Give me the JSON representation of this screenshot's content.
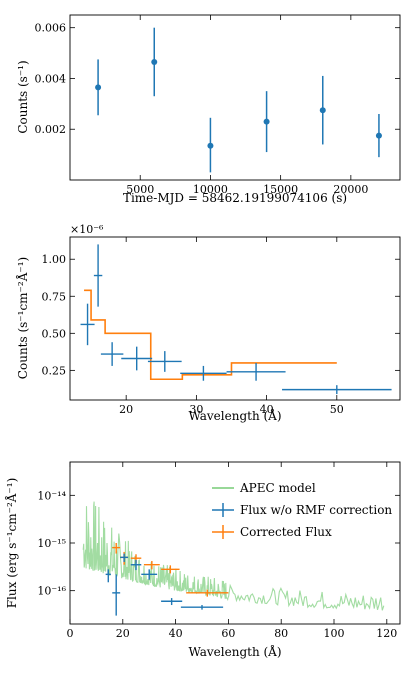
{
  "colors": {
    "blue": "#1f77b4",
    "orange": "#ff7f0e",
    "green": "#98d898"
  },
  "chart_data": [
    {
      "type": "scatter",
      "xlabel": "Time-MJD = 58462.19199074106 (s)",
      "ylabel": "Counts (s⁻¹)",
      "xlim": [
        0,
        23500
      ],
      "ylim": [
        0,
        0.0065
      ],
      "xticks": [
        5000,
        10000,
        15000,
        20000
      ],
      "xtick_labels": [
        "5000",
        "10000",
        "15000",
        "20000"
      ],
      "yticks": [
        0.002,
        0.004,
        0.006
      ],
      "ytick_labels": [
        "0.002",
        "0.004",
        "0.006"
      ],
      "series": [
        {
          "points": [
            {
              "x": 2000,
              "y": 0.00365,
              "lo": 0.00255,
              "hi": 0.00475
            },
            {
              "x": 6000,
              "y": 0.00465,
              "lo": 0.0033,
              "hi": 0.006
            },
            {
              "x": 10000,
              "y": 0.00135,
              "lo": 0.0003,
              "hi": 0.00245
            },
            {
              "x": 14000,
              "y": 0.0023,
              "lo": 0.0011,
              "hi": 0.0035
            },
            {
              "x": 18000,
              "y": 0.00275,
              "lo": 0.0014,
              "hi": 0.0041
            },
            {
              "x": 22000,
              "y": 0.00175,
              "lo": 0.0009,
              "hi": 0.0026
            }
          ]
        }
      ]
    },
    {
      "type": "line",
      "xlabel": "Wavelength (Å)",
      "ylabel": "Counts (s⁻¹cm⁻²Å⁻¹)",
      "exponent_label": "×10⁻⁶",
      "xlim": [
        12,
        59
      ],
      "ylim": [
        0.05,
        1.15
      ],
      "xticks": [
        20,
        30,
        40,
        50
      ],
      "xtick_labels": [
        "20",
        "30",
        "40",
        "50"
      ],
      "yticks": [
        0.25,
        0.5,
        0.75,
        1.0
      ],
      "ytick_labels": [
        "0.25",
        "0.50",
        "0.75",
        "1.00"
      ],
      "step_line": [
        [
          14,
          0.79
        ],
        [
          15,
          0.79
        ],
        [
          15,
          0.59
        ],
        [
          17,
          0.59
        ],
        [
          17,
          0.5
        ],
        [
          23.5,
          0.5
        ],
        [
          23.5,
          0.19
        ],
        [
          28,
          0.19
        ],
        [
          28,
          0.22
        ],
        [
          35,
          0.22
        ],
        [
          35,
          0.3
        ],
        [
          50,
          0.3
        ]
      ],
      "error_points": [
        {
          "x": 14.5,
          "xerr": 1.0,
          "y": 0.56,
          "yerr": 0.14
        },
        {
          "x": 16,
          "xerr": 0.6,
          "y": 0.89,
          "yerr": 0.21
        },
        {
          "x": 18,
          "xerr": 1.6,
          "y": 0.36,
          "yerr": 0.08
        },
        {
          "x": 21.5,
          "xerr": 2.2,
          "y": 0.33,
          "yerr": 0.08
        },
        {
          "x": 25.5,
          "xerr": 2.4,
          "y": 0.31,
          "yerr": 0.07
        },
        {
          "x": 31,
          "xerr": 3.3,
          "y": 0.23,
          "yerr": 0.05
        },
        {
          "x": 38.5,
          "xerr": 4.2,
          "y": 0.24,
          "yerr": 0.06
        },
        {
          "x": 50,
          "xerr": 7.8,
          "y": 0.12,
          "yerr": 0.03
        }
      ]
    },
    {
      "type": "line",
      "xlabel": "Wavelength (Å)",
      "ylabel": "Flux (erg s⁻¹cm⁻²Å⁻¹)",
      "xscale": "linear",
      "yscale": "log",
      "xlim": [
        0,
        125
      ],
      "ylim": [
        2e-17,
        5e-14
      ],
      "xticks": [
        0,
        20,
        40,
        60,
        80,
        100,
        120
      ],
      "xtick_labels": [
        "0",
        "20",
        "40",
        "60",
        "80",
        "100",
        "120"
      ],
      "yticks": [
        1e-16,
        1e-15,
        1e-14
      ],
      "ytick_labels": [
        "10⁻¹⁶",
        "10⁻¹⁵",
        "10⁻¹⁴"
      ],
      "legend_position": "top-right",
      "legend": [
        "APEC model",
        "Flux w/o RMF correction",
        "Corrected Flux"
      ],
      "apec_envelope": [
        [
          5,
          2e-14
        ],
        [
          8,
          1.2e-14
        ],
        [
          12,
          5e-15
        ],
        [
          15,
          3e-15
        ],
        [
          20,
          1.5e-15
        ],
        [
          25,
          8e-16
        ],
        [
          30,
          5e-16
        ],
        [
          40,
          3e-16
        ],
        [
          50,
          2.2e-16
        ],
        [
          60,
          1.8e-16
        ],
        [
          70,
          1.7e-16
        ],
        [
          80,
          1.6e-16
        ],
        [
          90,
          1.5e-16
        ],
        [
          100,
          1.4e-16
        ],
        [
          110,
          1.3e-16
        ],
        [
          118,
          1.5e-16
        ]
      ],
      "apec_floor": [
        [
          5,
          3e-16
        ],
        [
          10,
          2.5e-16
        ],
        [
          20,
          1.8e-16
        ],
        [
          30,
          1.3e-16
        ],
        [
          40,
          1e-16
        ],
        [
          50,
          8.5e-17
        ],
        [
          60,
          6.5e-17
        ],
        [
          70,
          5.5e-17
        ],
        [
          80,
          5e-17
        ],
        [
          90,
          4.5e-17
        ],
        [
          100,
          4.2e-17
        ],
        [
          110,
          4e-17
        ],
        [
          119,
          3.8e-17
        ]
      ],
      "blue_points": [
        {
          "x": 14.5,
          "xerr": 1.0,
          "y": 2.2e-16,
          "ylo": 1.5e-16,
          "yhi": 2.8e-16
        },
        {
          "x": 17.5,
          "xerr": 1.5,
          "y": 9e-17,
          "ylo": 3e-17,
          "yhi": 2.2e-16
        },
        {
          "x": 20.5,
          "xerr": 1.5,
          "y": 5e-16,
          "ylo": 4e-16,
          "yhi": 6e-16
        },
        {
          "x": 25,
          "xerr": 2.0,
          "y": 3.5e-16,
          "ylo": 2.7e-16,
          "yhi": 4.4e-16
        },
        {
          "x": 30,
          "xerr": 3.0,
          "y": 2.2e-16,
          "ylo": 1.7e-16,
          "yhi": 2.8e-16
        },
        {
          "x": 38.5,
          "xerr": 4.0,
          "y": 6e-17,
          "ylo": 5e-17,
          "yhi": 7e-17
        },
        {
          "x": 50,
          "xerr": 8.0,
          "y": 4.5e-17,
          "ylo": 4e-17,
          "yhi": 5e-17
        }
      ],
      "orange_points": [
        {
          "x": 17.5,
          "xerr": 1.5,
          "y": 8e-16,
          "ylo": 6e-16,
          "yhi": 1e-15
        },
        {
          "x": 20.5,
          "xerr": 1.5,
          "y": 5e-16,
          "ylo": 3.5e-16,
          "yhi": 6.5e-16
        },
        {
          "x": 25,
          "xerr": 2.0,
          "y": 4.8e-16,
          "ylo": 3.8e-16,
          "yhi": 5.8e-16
        },
        {
          "x": 31,
          "xerr": 3.0,
          "y": 3.5e-16,
          "ylo": 2.8e-16,
          "yhi": 4.2e-16
        },
        {
          "x": 38,
          "xerr": 3.5,
          "y": 2.8e-16,
          "ylo": 2.3e-16,
          "yhi": 3.4e-16
        },
        {
          "x": 52,
          "xerr": 8.0,
          "y": 9e-17,
          "ylo": 7.5e-17,
          "yhi": 1.05e-16
        }
      ]
    }
  ]
}
